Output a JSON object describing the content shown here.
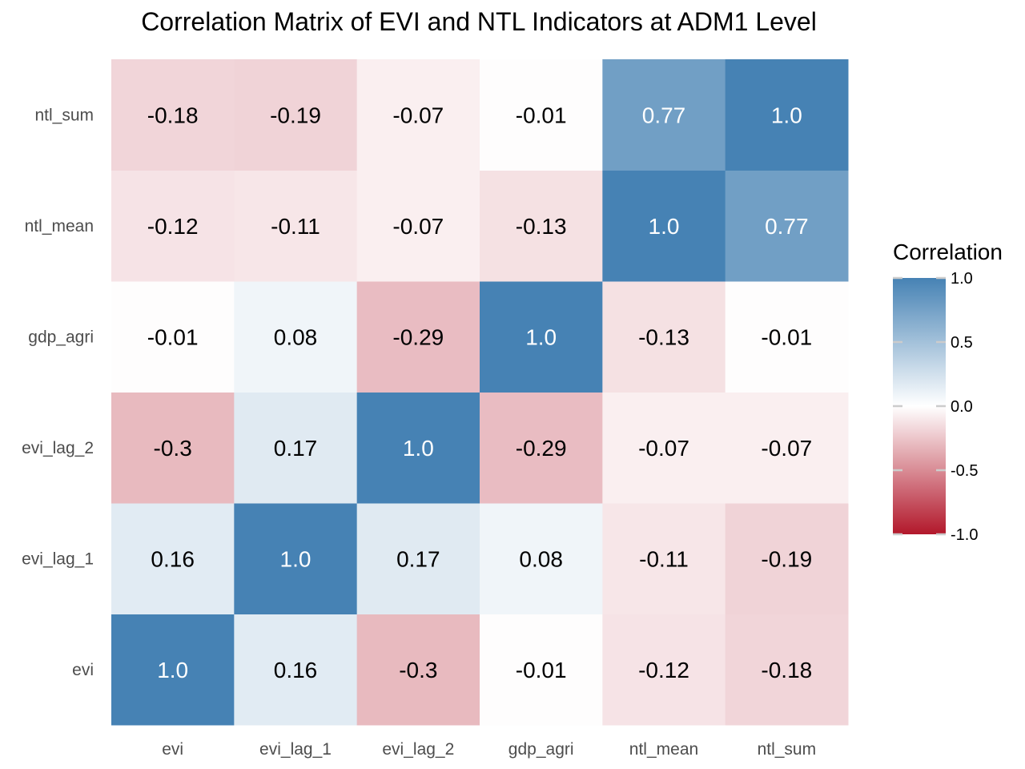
{
  "chart_data": {
    "type": "heatmap",
    "title": "Correlation Matrix of EVI and NTL Indicators at ADM1 Level",
    "xlabel": "",
    "ylabel": "",
    "x_categories": [
      "evi",
      "evi_lag_1",
      "evi_lag_2",
      "gdp_agri",
      "ntl_mean",
      "ntl_sum"
    ],
    "y_categories": [
      "evi",
      "evi_lag_1",
      "evi_lag_2",
      "gdp_agri",
      "ntl_mean",
      "ntl_sum"
    ],
    "values": [
      [
        1.0,
        0.16,
        -0.3,
        -0.01,
        -0.12,
        -0.18
      ],
      [
        0.16,
        1.0,
        0.17,
        0.08,
        -0.11,
        -0.19
      ],
      [
        -0.3,
        0.17,
        1.0,
        -0.29,
        -0.07,
        -0.07
      ],
      [
        -0.01,
        0.08,
        -0.29,
        1.0,
        -0.13,
        -0.01
      ],
      [
        -0.12,
        -0.11,
        -0.07,
        -0.13,
        1.0,
        0.77
      ],
      [
        -0.18,
        -0.19,
        -0.07,
        -0.01,
        0.77,
        1.0
      ]
    ],
    "labels": [
      [
        "1.0",
        "0.16",
        "-0.3",
        "-0.01",
        "-0.12",
        "-0.18"
      ],
      [
        "0.16",
        "1.0",
        "0.17",
        "0.08",
        "-0.11",
        "-0.19"
      ],
      [
        "-0.3",
        "0.17",
        "1.0",
        "-0.29",
        "-0.07",
        "-0.07"
      ],
      [
        "-0.01",
        "0.08",
        "-0.29",
        "1.0",
        "-0.13",
        "-0.01"
      ],
      [
        "-0.12",
        "-0.11",
        "-0.07",
        "-0.13",
        "1.0",
        "0.77"
      ],
      [
        "-0.18",
        "-0.19",
        "-0.07",
        "-0.01",
        "0.77",
        "1.0"
      ]
    ],
    "legend": {
      "title": "Correlation",
      "position": "right",
      "range": [
        -1.0,
        1.0
      ],
      "ticks": [
        1.0,
        0.5,
        0.0,
        -0.5,
        -1.0
      ],
      "tick_labels": [
        "1.0",
        "0.5",
        "0.0",
        "-0.5",
        "-1.0"
      ]
    },
    "colors": {
      "low": "#b2182b",
      "mid": "#ffffff",
      "high": "#4682b4",
      "text_dark": "#000000",
      "text_light": "#ffffff"
    },
    "grid": false
  }
}
